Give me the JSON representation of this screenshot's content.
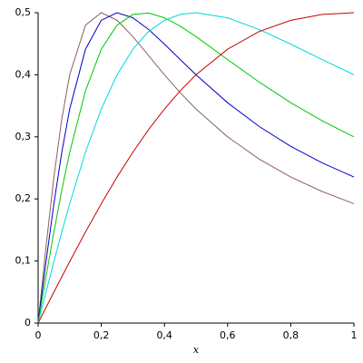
{
  "chart_data": {
    "type": "line",
    "x_label": "x",
    "x": [
      0,
      0.025,
      0.05,
      0.075,
      0.1,
      0.15,
      0.2,
      0.25,
      0.3,
      0.35,
      0.4,
      0.45,
      0.5,
      0.6,
      0.7,
      0.8,
      0.9,
      1
    ],
    "series": [
      {
        "color": "#8b6060",
        "values": [
          0,
          0.1231,
          0.2353,
          0.3288,
          0.4,
          0.48,
          0.5,
          0.4878,
          0.4615,
          0.4308,
          0.4,
          0.3711,
          0.3448,
          0.3,
          0.2642,
          0.2353,
          0.2118,
          0.1923
        ]
      },
      {
        "color": "#0000c8",
        "values": [
          0,
          0.099,
          0.1923,
          0.2752,
          0.3448,
          0.4412,
          0.4878,
          0.5,
          0.4918,
          0.473,
          0.4494,
          0.4245,
          0.4,
          0.355,
          0.3167,
          0.2847,
          0.2579,
          0.2353
        ]
      },
      {
        "color": "#00c800",
        "values": [
          0,
          0.0746,
          0.1467,
          0.2142,
          0.2752,
          0.3742,
          0.4412,
          0.48,
          0.4972,
          0.4994,
          0.4918,
          0.4783,
          0.4615,
          0.4245,
          0.3882,
          0.355,
          0.3257,
          0.3
        ]
      },
      {
        "color": "#00d8d8",
        "values": [
          0,
          0.0499,
          0.099,
          0.1467,
          0.1923,
          0.2752,
          0.3448,
          0.4,
          0.4412,
          0.4698,
          0.4878,
          0.4972,
          0.5,
          0.4918,
          0.473,
          0.4494,
          0.4245,
          0.4
        ]
      },
      {
        "color": "#c80000",
        "values": [
          0,
          0.025,
          0.0499,
          0.0746,
          0.099,
          0.1467,
          0.1923,
          0.2353,
          0.2752,
          0.3119,
          0.3448,
          0.3742,
          0.4,
          0.4412,
          0.4698,
          0.4878,
          0.4972,
          0.5
        ]
      }
    ],
    "xlim": [
      0,
      1
    ],
    "ylim": [
      0,
      0.5
    ],
    "xticks": [
      0,
      {
        "value": 0.2,
        "label": "0,2"
      },
      {
        "value": 0.4,
        "label": "0,4"
      },
      {
        "value": 0.6,
        "label": "0,6"
      },
      {
        "value": 0.8,
        "label": "0,8"
      },
      1
    ],
    "yticks": [
      0,
      {
        "value": 0.1,
        "label": "0,1"
      },
      {
        "value": 0.2,
        "label": "0,2"
      },
      {
        "value": 0.3,
        "label": "0,3"
      },
      {
        "value": 0.4,
        "label": "0,4"
      },
      {
        "value": 0.5,
        "label": "0,5"
      }
    ]
  }
}
